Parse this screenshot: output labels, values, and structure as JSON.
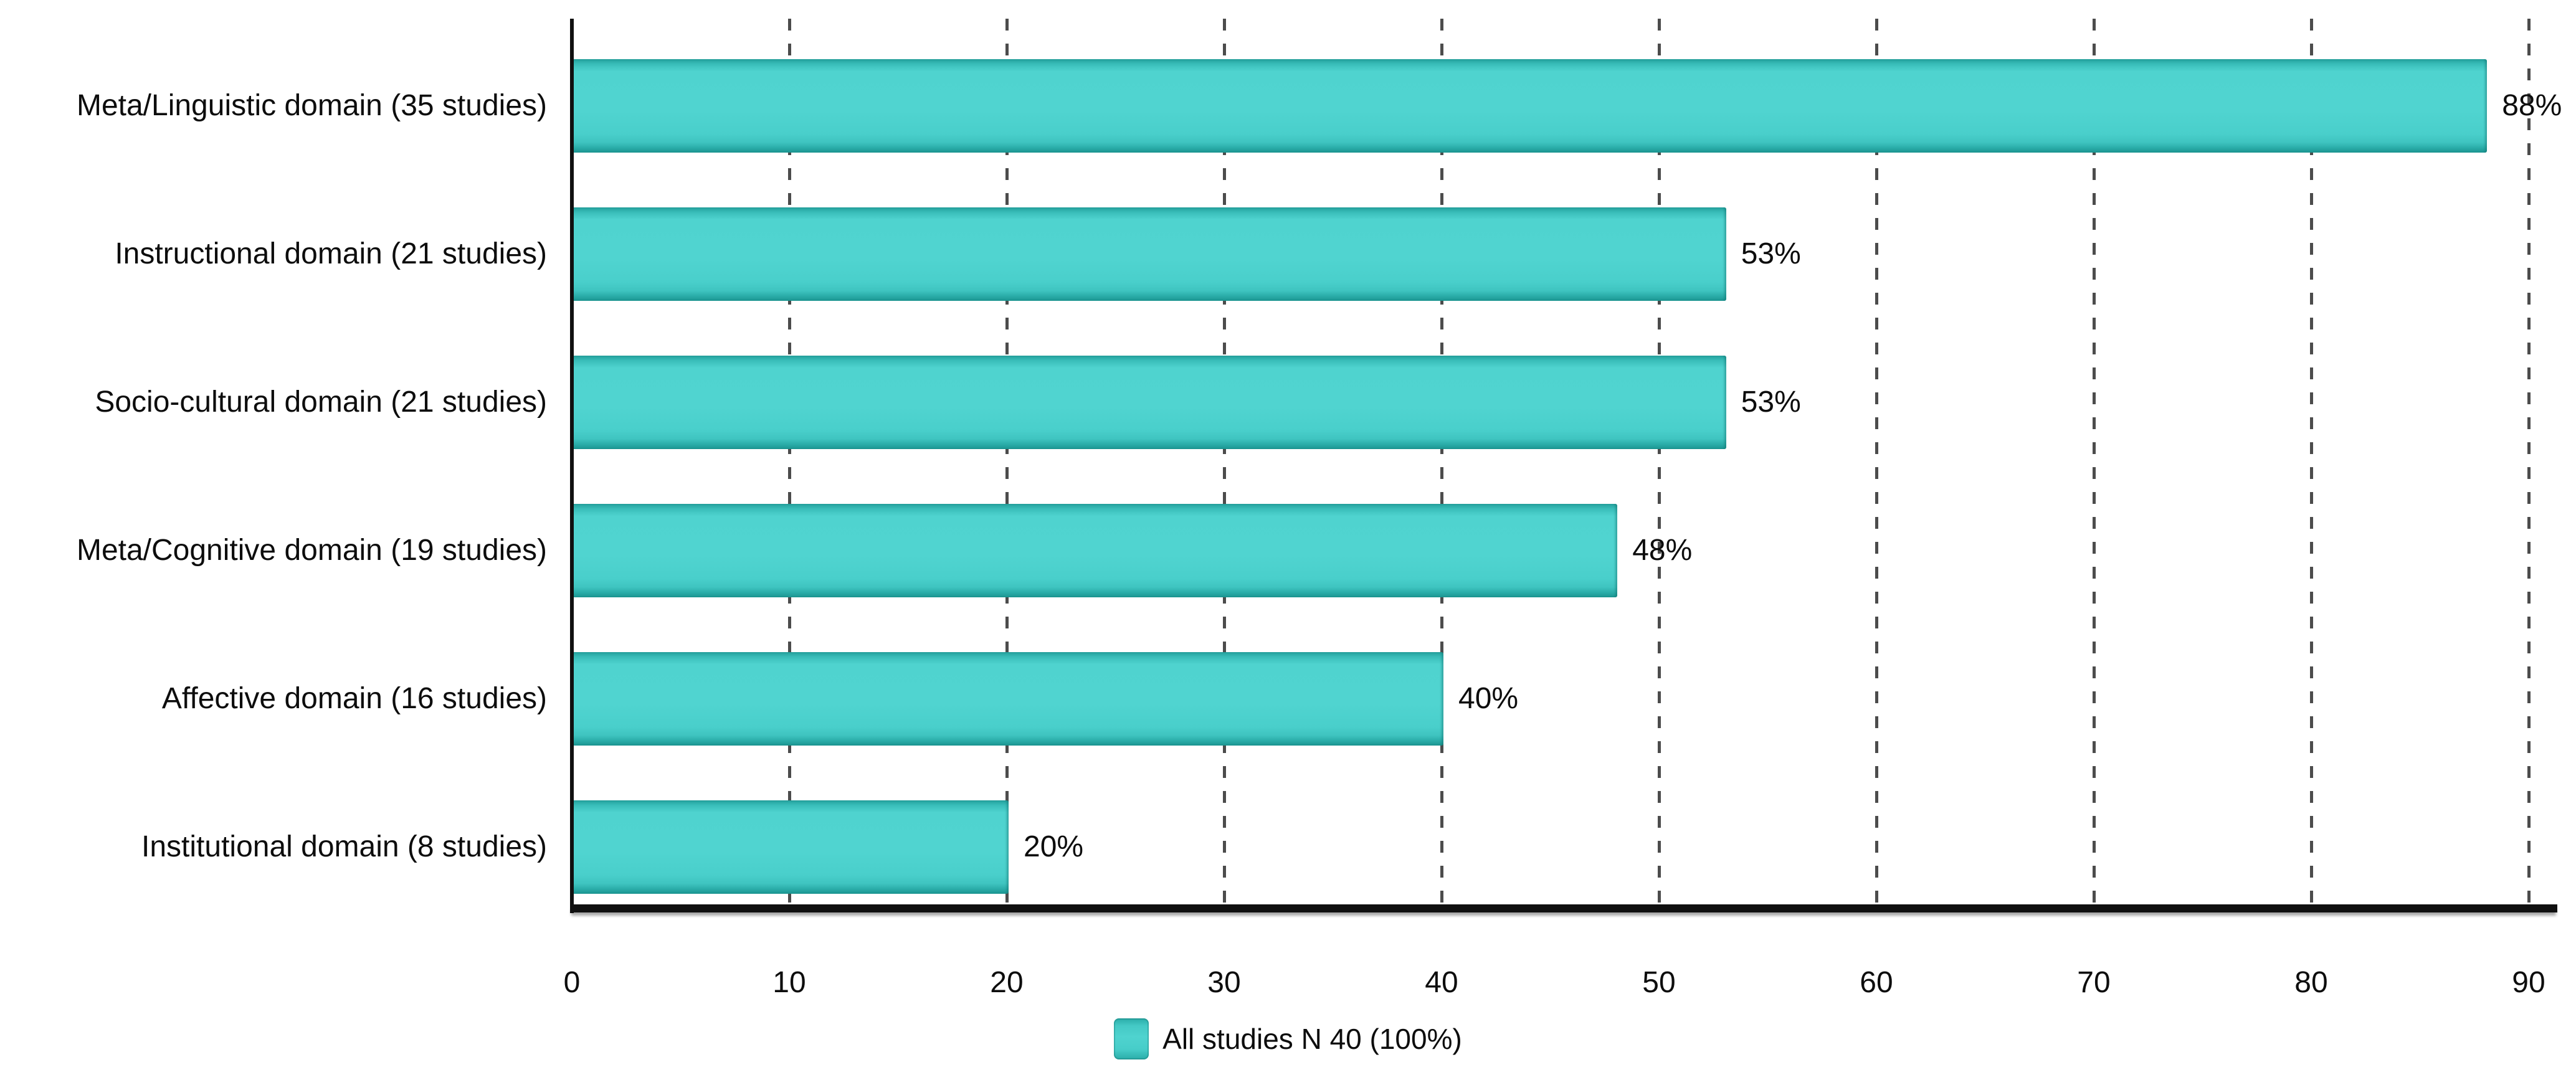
{
  "figure": {
    "background_color": "#ffffff",
    "text_color": "#0d0d0d"
  },
  "colors": {
    "bar_fill": "#4cd0cc",
    "bar_edge_dark": "#1b9591",
    "gridline": "#4c4c4c",
    "axis_line": "#101010"
  },
  "legend": {
    "label": "All studies N 40 (100%)",
    "swatch_color": "#45cdc9"
  },
  "chart_data": {
    "type": "bar",
    "orientation": "horizontal",
    "title": "",
    "xlabel": "",
    "ylabel": "",
    "categories": [
      "Meta/Linguistic domain (35 studies)",
      "Instructional domain (21 studies)",
      "Socio-cultural domain (21 studies)",
      "Meta/Cognitive domain (19 studies)",
      "Affective domain (16 studies)",
      "Institutional domain (8 studies)"
    ],
    "values": [
      88,
      53,
      53,
      48,
      40,
      20
    ],
    "value_labels": [
      "88%",
      "53%",
      "53%",
      "48%",
      "40%",
      "20%"
    ],
    "series": [
      {
        "name": "All studies N 40 (100%)",
        "values": [
          88,
          53,
          53,
          48,
          40,
          20
        ]
      }
    ],
    "x_ticks": [
      0,
      10,
      20,
      30,
      40,
      50,
      60,
      70,
      80,
      90
    ],
    "xlim": [
      0,
      91
    ],
    "grid": "vertical-dashed",
    "legend_position": "bottom-center"
  }
}
